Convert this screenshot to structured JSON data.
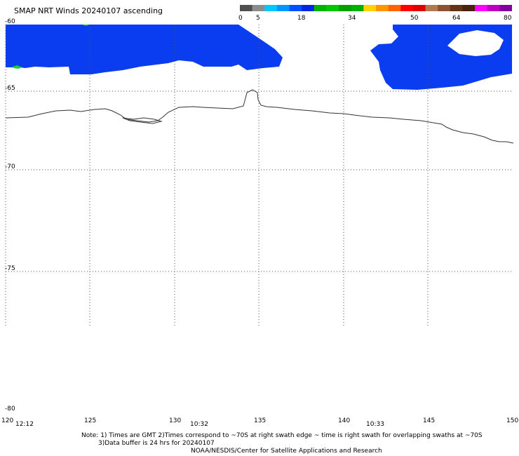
{
  "title": "SMAP NRT Winds 20240107 ascending",
  "colorbar": {
    "labels": [
      "0",
      "5",
      "18",
      "34",
      "50",
      "64",
      "80"
    ],
    "segments": [
      {
        "color": "#505050"
      },
      {
        "color": "#8c8c8c"
      },
      {
        "color": "#00c8ff"
      },
      {
        "color": "#0096ff"
      },
      {
        "color": "#0050ff"
      },
      {
        "color": "#0028e0"
      },
      {
        "color": "#00b400"
      },
      {
        "color": "#00c800"
      },
      {
        "color": "#00a000"
      },
      {
        "color": "#00b000"
      },
      {
        "color": "#ffd200"
      },
      {
        "color": "#ff9600"
      },
      {
        "color": "#ff6400"
      },
      {
        "color": "#ff0000"
      },
      {
        "color": "#e00000"
      },
      {
        "color": "#b47850"
      },
      {
        "color": "#8c5032"
      },
      {
        "color": "#643214"
      },
      {
        "color": "#4b2010"
      },
      {
        "color": "#ff00ff"
      },
      {
        "color": "#c000c0"
      },
      {
        "color": "#8000a0"
      }
    ]
  },
  "axes": {
    "lat_labels": [
      "-60",
      "-65",
      "-70",
      "-75",
      "-80"
    ],
    "lon_labels": [
      "120",
      "125",
      "130",
      "135",
      "140",
      "145",
      "150"
    ]
  },
  "swath_times": [
    "12:12",
    "10:32",
    "10:33"
  ],
  "colors": {
    "wind_blue": "#0a3cf0",
    "wind_green": "#18d030",
    "coast": "#333333",
    "grid": "#555555"
  },
  "notes": {
    "line1": "Note: 1) Times are GMT 2)Times correspond to ~70S at right swath edge ~ time is right swath for overlapping swaths at ~70S",
    "line2": "3)Data buffer is 24 hrs for 20240107",
    "line3": "NOAA/NESDIS/Center for Satellite Applications and Research"
  }
}
